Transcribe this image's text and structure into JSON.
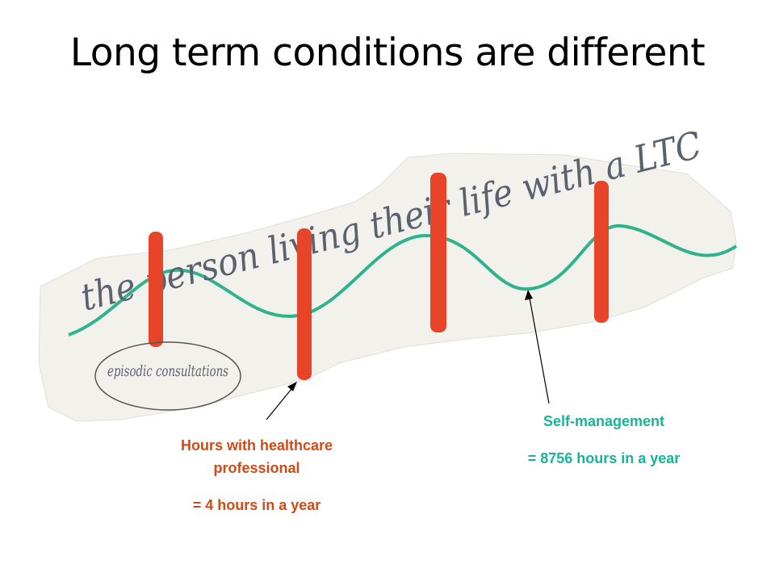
{
  "title": "Long term conditions are different",
  "drawing": {
    "caption": "the person living their life with a LTC",
    "bubble": "episodic consultations"
  },
  "callouts": [
    {
      "heading": "Hours with healthcare professional",
      "detail": "= 4 hours in a year"
    },
    {
      "heading": "Self-management",
      "detail": "= 8756 hours in a year"
    }
  ]
}
